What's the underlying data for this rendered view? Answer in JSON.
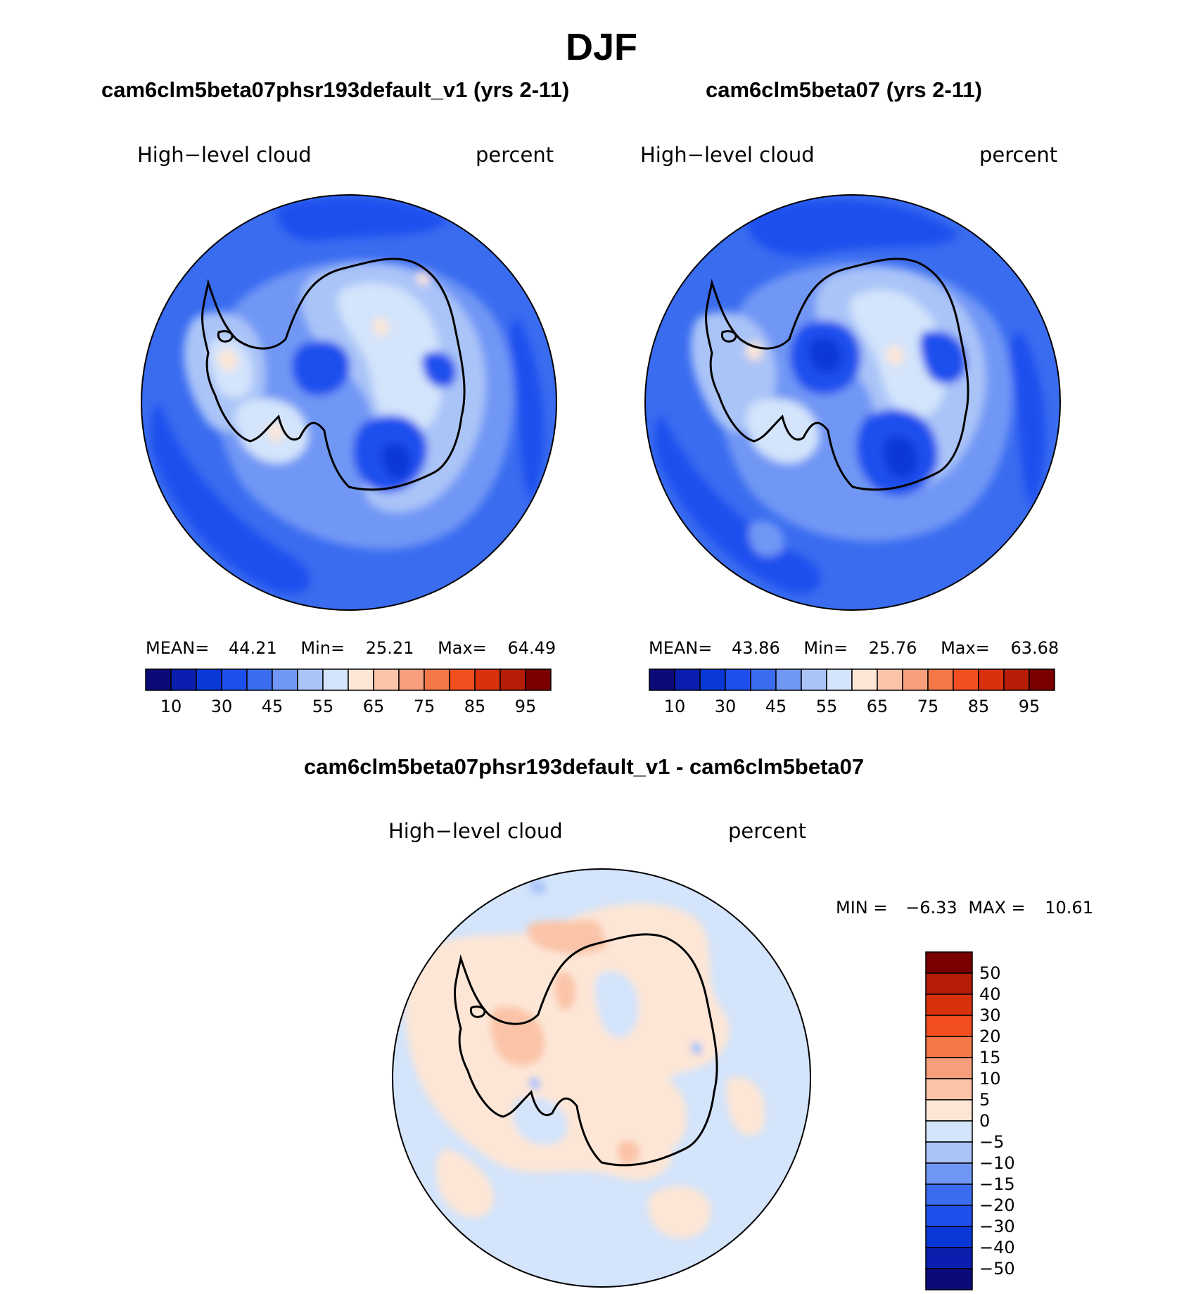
{
  "figure": {
    "title": "DJF"
  },
  "panels": [
    {
      "title": "cam6clm5beta07phsr193default_v1 (yrs 2-11)",
      "variable": "High−level cloud",
      "units": "percent",
      "stats": {
        "mean_label": "MEAN=",
        "mean": "44.21",
        "min_label": "Min=",
        "min": "25.21",
        "max_label": "Max=",
        "max": "64.49"
      }
    },
    {
      "title": "cam6clm5beta07 (yrs 2-11)",
      "variable": "High−level cloud",
      "units": "percent",
      "stats": {
        "mean_label": "MEAN=",
        "mean": "43.86",
        "min_label": "Min=",
        "min": "25.76",
        "max_label": "Max=",
        "max": "63.68"
      }
    }
  ],
  "difference": {
    "title": "cam6clm5beta07phsr193default_v1 - cam6clm5beta07",
    "variable": "High−level cloud",
    "units": "percent",
    "stats": {
      "min_label": "MIN =",
      "min": "−6.33",
      "max_label": "MAX =",
      "max": "10.61"
    }
  },
  "colorbar_abs": {
    "colors": [
      "#0c0a7a",
      "#0a1fb0",
      "#0a38d8",
      "#1e50ee",
      "#3a6cf0",
      "#7197f5",
      "#aac4f8",
      "#d3e4fb",
      "#fde6d6",
      "#fbc4a8",
      "#f79e7c",
      "#f47748",
      "#f24e20",
      "#d9310c",
      "#b51d08",
      "#7a0000"
    ],
    "tick_labels": [
      "10",
      "30",
      "45",
      "55",
      "65",
      "75",
      "85",
      "95"
    ]
  },
  "colorbar_diff": {
    "colors": [
      "#7a0000",
      "#b51d08",
      "#d9310c",
      "#f24e20",
      "#f47748",
      "#f79e7c",
      "#fbc4a8",
      "#fde6d6",
      "#d3e4fb",
      "#aac4f8",
      "#7197f5",
      "#3a6cf0",
      "#1e50ee",
      "#0a38d8",
      "#0a1fb0",
      "#0c0a7a"
    ],
    "tick_labels": [
      "50",
      "40",
      "30",
      "20",
      "15",
      "10",
      "5",
      "0",
      "−5",
      "−10",
      "−15",
      "−20",
      "−30",
      "−40",
      "−50"
    ]
  },
  "map_colors": {
    "ocean_mid": "#3a6cf0",
    "ocean_light": "#7197f5",
    "dark": "#1e50ee",
    "darker": "#0a38d8",
    "pale": "#aac4f8",
    "paler": "#d3e4fb",
    "peach": "#fde6d6",
    "diff_pos": "#fde6d6",
    "diff_pos2": "#fbc4a8",
    "diff_neg": "#d3e4fb",
    "diff_neg2": "#aac4f8",
    "coast": "#000000"
  }
}
